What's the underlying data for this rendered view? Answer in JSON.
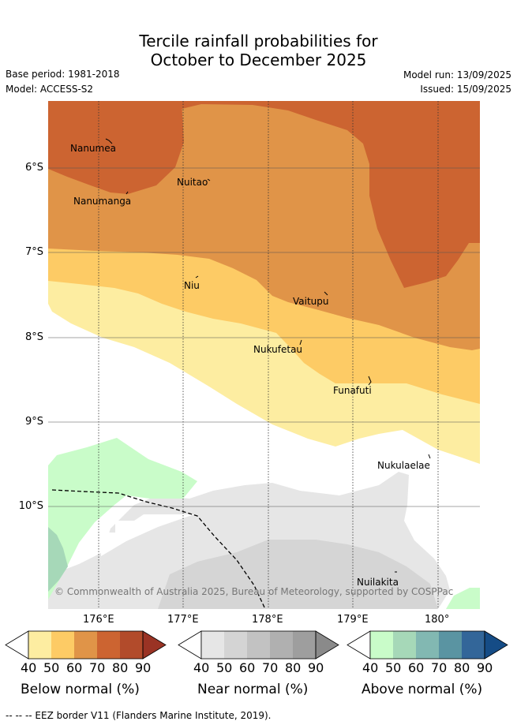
{
  "title_line1": "Tercile rainfall probabilities for",
  "title_line2": "October to December 2025",
  "base_period": "Base period: 1981-2018",
  "model": "Model: ACCESS-S2",
  "model_run": "Model run: 13/09/2025",
  "issued": "Issued: 15/09/2025",
  "lat_labels": [
    "6°S",
    "7°S",
    "8°S",
    "9°S",
    "10°S"
  ],
  "lon_labels": [
    "176°E",
    "177°E",
    "178°E",
    "179°E",
    "180°"
  ],
  "places": [
    "Nanumea",
    "Nuitao",
    "Nanumanga",
    "Niu",
    "Vaitupu",
    "Nukufetau",
    "Funafuti",
    "Nukulaelae",
    "Nuilakita"
  ],
  "copyright": "© Commonwealth of Australia 2025, Bureau of Meteorology, supported by COSPPac",
  "colorbars": [
    {
      "title": "Below normal (%)",
      "ticks": [
        "40",
        "50",
        "60",
        "70",
        "80",
        "90"
      ],
      "colors": [
        "#ffffff",
        "#fdeda1",
        "#fdcb65",
        "#e09448",
        "#cc6431",
        "#b24b2b",
        "#9a3324"
      ]
    },
    {
      "title": "Near normal (%)",
      "ticks": [
        "40",
        "50",
        "60",
        "70",
        "80",
        "90"
      ],
      "colors": [
        "#ffffff",
        "#e6e6e6",
        "#d4d4d4",
        "#c2c2c2",
        "#b0b0b0",
        "#9e9e9e",
        "#8a8a8a"
      ]
    },
    {
      "title": "Above normal (%)",
      "ticks": [
        "40",
        "50",
        "60",
        "70",
        "80",
        "90"
      ],
      "colors": [
        "#ffffff",
        "#c9fcc9",
        "#a6d8b8",
        "#82b8b2",
        "#5a94a2",
        "#336699",
        "#154c86"
      ]
    }
  ],
  "legend_footnote": "--  --  -- EEZ border V11 (Flanders Marine Institute, 2019)."
}
